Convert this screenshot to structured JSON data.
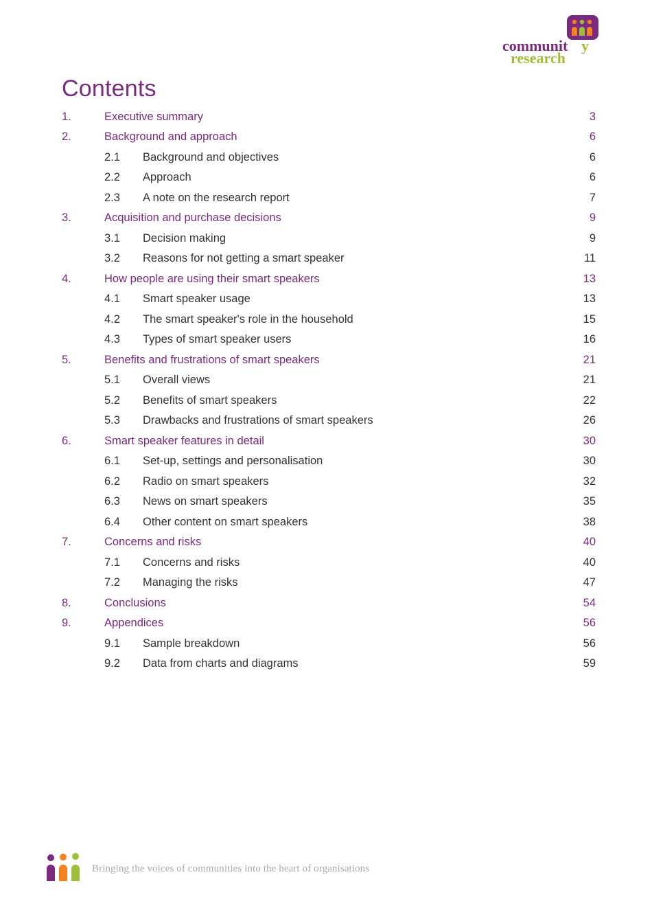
{
  "brand": {
    "name_line1": "community",
    "name_line2": "research",
    "primary_color": "#7a2a7f",
    "secondary_color": "#9fbf3b",
    "accent_color": "#f58220",
    "text_color": "#333333",
    "tagline": "Bringing the voices of communities into the heart of organisations",
    "tagline_color": "#a9a9a9"
  },
  "title": "Contents",
  "title_color": "#7a2a7f",
  "title_fontsize": 34,
  "body_fontsize": 16.5,
  "section_color": "#7a2a7f",
  "subsection_color": "#333333",
  "toc": [
    {
      "num": "1.",
      "title": "Executive summary",
      "page": "3",
      "subs": []
    },
    {
      "num": "2.",
      "title": "Background and approach",
      "page": "6",
      "subs": [
        {
          "num": "2.1",
          "title": "Background and objectives",
          "page": "6"
        },
        {
          "num": "2.2",
          "title": "Approach",
          "page": "6"
        },
        {
          "num": "2.3",
          "title": "A note on the research report",
          "page": "7"
        }
      ]
    },
    {
      "num": "3.",
      "title": "Acquisition and purchase decisions",
      "page": "9",
      "subs": [
        {
          "num": "3.1",
          "title": "Decision making",
          "page": "9"
        },
        {
          "num": "3.2",
          "title": "Reasons for not getting a smart speaker",
          "page": "11"
        }
      ]
    },
    {
      "num": "4.",
      "title": "How people are using their smart speakers",
      "page": "13",
      "subs": [
        {
          "num": "4.1",
          "title": "Smart speaker usage",
          "page": "13"
        },
        {
          "num": "4.2",
          "title": "The smart speaker's role in the household",
          "page": "15"
        },
        {
          "num": "4.3",
          "title": "Types of smart speaker users",
          "page": "16"
        }
      ]
    },
    {
      "num": "5.",
      "title": "Benefits and frustrations of smart speakers",
      "page": "21",
      "subs": [
        {
          "num": "5.1",
          "title": "Overall views",
          "page": "21"
        },
        {
          "num": "5.2",
          "title": "Benefits of smart speakers",
          "page": "22"
        },
        {
          "num": "5.3",
          "title": "Drawbacks and frustrations of smart speakers",
          "page": "26"
        }
      ]
    },
    {
      "num": "6.",
      "title": "Smart speaker features in detail",
      "page": "30",
      "subs": [
        {
          "num": "6.1",
          "title": "Set-up, settings and personalisation",
          "page": "30"
        },
        {
          "num": "6.2",
          "title": "Radio on smart speakers",
          "page": "32"
        },
        {
          "num": "6.3",
          "title": "News on smart speakers",
          "page": "35"
        },
        {
          "num": "6.4",
          "title": "Other content on smart speakers",
          "page": "38"
        }
      ]
    },
    {
      "num": "7.",
      "title": "Concerns and risks",
      "page": "40",
      "subs": [
        {
          "num": "7.1",
          "title": "Concerns and risks",
          "page": "40"
        },
        {
          "num": "7.2",
          "title": "Managing the risks",
          "page": "47"
        }
      ]
    },
    {
      "num": "8.",
      "title": "Conclusions",
      "page": "54",
      "subs": []
    },
    {
      "num": "9.",
      "title": "Appendices",
      "page": "56",
      "subs": [
        {
          "num": "9.1",
          "title": "Sample breakdown",
          "page": "56"
        },
        {
          "num": "9.2",
          "title": "Data from charts and diagrams",
          "page": "59"
        }
      ]
    }
  ]
}
